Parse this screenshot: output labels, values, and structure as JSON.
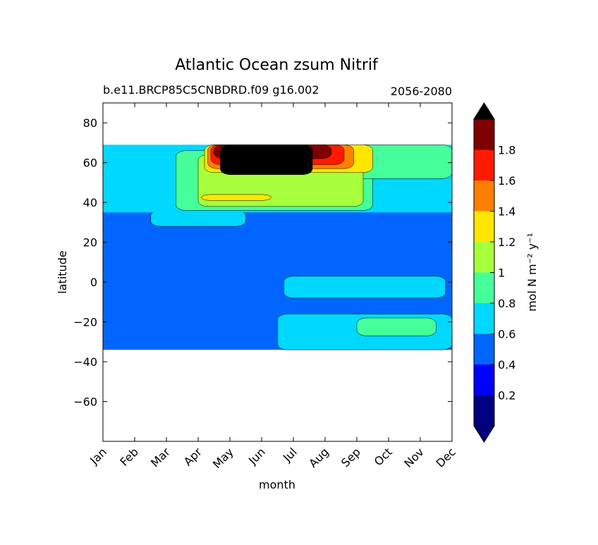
{
  "chart_data": {
    "type": "heatmap",
    "title": "Atlantic Ocean zsum Nitrif",
    "subtitle_left": "b.e11.BRCP85C5CNBDRD.f09 g16.002",
    "subtitle_right": "2056-2080",
    "xlabel": "month",
    "ylabel": "latitude",
    "x_ticks": [
      "Jan",
      "Feb",
      "Mar",
      "Apr",
      "May",
      "Jun",
      "Jul",
      "Aug",
      "Sep",
      "Oct",
      "Nov",
      "Dec"
    ],
    "ylim": [
      -80,
      90
    ],
    "y_ticks": [
      80,
      60,
      40,
      20,
      0,
      -20,
      -40,
      -60
    ],
    "data_lat_range": [
      -34,
      69
    ],
    "colorbar": {
      "label": "mol N m⁻² y⁻¹",
      "levels": [
        0.0,
        0.2,
        0.4,
        0.6,
        0.8,
        1.0,
        1.2,
        1.4,
        1.6,
        1.8,
        2.0
      ],
      "tick_labels": [
        "0.2",
        "0.4",
        "0.6",
        "0.8",
        "1",
        "1.2",
        "1.4",
        "1.6",
        "1.8"
      ],
      "colors": [
        "#000080",
        "#0000ff",
        "#0066ff",
        "#00d8ff",
        "#44ff9a",
        "#a8ff3c",
        "#ffe600",
        "#ff7f00",
        "#ff1a00",
        "#7f0000"
      ],
      "under_color": "#000080",
      "over_color": "#000000",
      "extend": "both"
    },
    "grid": false,
    "regions": [
      {
        "lat": [
          -34,
          36
        ],
        "month": [
          0,
          11
        ],
        "value": 0.5
      },
      {
        "lat": [
          28,
          36
        ],
        "month": [
          1.5,
          4.5
        ],
        "value": 0.7
      },
      {
        "lat": [
          35,
          69
        ],
        "month": [
          0,
          11
        ],
        "value": 0.7
      },
      {
        "lat": [
          -34,
          -16
        ],
        "month": [
          5.5,
          11
        ],
        "value": 0.7
      },
      {
        "lat": [
          -8,
          3
        ],
        "month": [
          5.7,
          10.8
        ],
        "value": 0.7
      },
      {
        "lat": [
          -27,
          -18
        ],
        "month": [
          8,
          10.5
        ],
        "value": 0.9
      },
      {
        "lat": [
          36,
          66
        ],
        "month": [
          2.3,
          8.5
        ],
        "value": 0.9
      },
      {
        "lat": [
          52,
          69
        ],
        "month": [
          7.5,
          11
        ],
        "value": 0.9
      },
      {
        "lat": [
          38,
          64
        ],
        "month": [
          3,
          8.2
        ],
        "value": 1.1
      },
      {
        "lat": [
          41,
          44
        ],
        "month": [
          3.1,
          5.3
        ],
        "value": 1.3
      },
      {
        "lat": [
          55,
          69
        ],
        "month": [
          3.2,
          8.5
        ],
        "value": 1.3
      },
      {
        "lat": [
          57,
          69
        ],
        "month": [
          3.3,
          7.9
        ],
        "value": 1.5
      },
      {
        "lat": [
          59,
          69
        ],
        "month": [
          3.4,
          7.6
        ],
        "value": 1.7
      },
      {
        "lat": [
          62,
          69
        ],
        "month": [
          3.5,
          7.2
        ],
        "value": 1.9
      },
      {
        "lat": [
          54,
          69
        ],
        "month": [
          3.7,
          6.6
        ],
        "value": 2.1
      }
    ]
  }
}
